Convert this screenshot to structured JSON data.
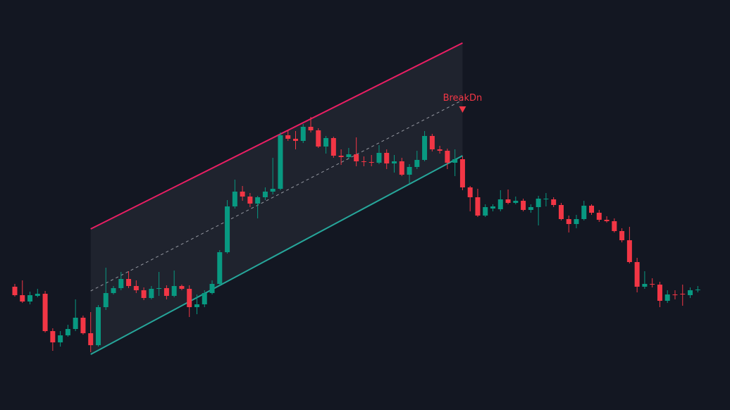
{
  "chart_data": {
    "type": "candlestick",
    "open": [
      175,
      163,
      154,
      162,
      165,
      112,
      96,
      106,
      115,
      131,
      109,
      92,
      146,
      166,
      173,
      186,
      176,
      170,
      159,
      172,
      173,
      162,
      176,
      172,
      146,
      150,
      166,
      179,
      224,
      289,
      310,
      303,
      293,
      302,
      310,
      314,
      390,
      385,
      382,
      402,
      397,
      374,
      386,
      361,
      359,
      363,
      353,
      352,
      351,
      365,
      350,
      353,
      334,
      345,
      355,
      389,
      370,
      368,
      351,
      356,
      316,
      302,
      276,
      286,
      285,
      299,
      294,
      297,
      284,
      288,
      299,
      299,
      291,
      271,
      264,
      271,
      290,
      280,
      270,
      268,
      254,
      241,
      210,
      175,
      179,
      178,
      155,
      164,
      165,
      163,
      170
    ],
    "high": [
      179,
      184,
      168,
      172,
      169,
      116,
      112,
      121,
      157,
      134,
      139,
      149,
      202,
      176,
      196,
      197,
      184,
      174,
      176,
      196,
      177,
      198,
      178,
      177,
      164,
      170,
      184,
      227,
      298,
      327,
      318,
      308,
      304,
      316,
      358,
      394,
      397,
      396,
      406,
      416,
      400,
      389,
      388,
      370,
      372,
      387,
      360,
      362,
      376,
      370,
      362,
      358,
      349,
      368,
      396,
      392,
      375,
      371,
      370,
      360,
      318,
      314,
      292,
      292,
      312,
      313,
      303,
      300,
      292,
      304,
      308,
      302,
      294,
      276,
      277,
      297,
      292,
      284,
      275,
      272,
      258,
      260,
      216,
      197,
      187,
      182,
      170,
      170,
      178,
      174,
      176
    ],
    "low": [
      161,
      152,
      150,
      160,
      110,
      84,
      90,
      104,
      112,
      107,
      82,
      90,
      142,
      164,
      170,
      173,
      166,
      156,
      157,
      162,
      157,
      160,
      170,
      132,
      136,
      146,
      164,
      177,
      222,
      286,
      297,
      288,
      272,
      298,
      306,
      312,
      382,
      370,
      379,
      394,
      372,
      364,
      358,
      348,
      356,
      346,
      346,
      346,
      349,
      342,
      337,
      332,
      322,
      342,
      353,
      367,
      364,
      342,
      332,
      312,
      282,
      274,
      274,
      282,
      282,
      292,
      292,
      282,
      280,
      262,
      289,
      288,
      269,
      252,
      258,
      269,
      277,
      267,
      266,
      252,
      238,
      208,
      167,
      172,
      174,
      146,
      152,
      157,
      148,
      159,
      167
    ],
    "close": [
      163,
      154,
      163,
      165,
      112,
      96,
      106,
      115,
      131,
      109,
      92,
      146,
      166,
      173,
      186,
      176,
      170,
      159,
      172,
      173,
      162,
      176,
      172,
      146,
      150,
      166,
      179,
      224,
      289,
      310,
      303,
      293,
      302,
      310,
      314,
      390,
      385,
      382,
      402,
      397,
      374,
      386,
      361,
      359,
      363,
      353,
      352,
      351,
      365,
      350,
      353,
      334,
      345,
      355,
      389,
      370,
      368,
      351,
      356,
      316,
      302,
      276,
      288,
      289,
      299,
      294,
      297,
      284,
      288,
      300,
      300,
      291,
      271,
      264,
      271,
      290,
      280,
      270,
      268,
      254,
      241,
      210,
      175,
      179,
      178,
      155,
      164,
      163,
      164,
      170,
      171
    ],
    "up_color": "#089981",
    "down_color": "#f23645",
    "ylim": [
      0,
      582
    ],
    "channel": {
      "x": [
        10,
        59
      ],
      "upper": [
        257,
        521
      ],
      "middle": [
        169,
        440
      ],
      "lower": [
        79,
        361
      ],
      "upper_color": "#e91e63",
      "lower_color": "#26a69a",
      "middle_color": "#9598a1"
    },
    "annotation": {
      "text": "BreakDn",
      "x": 59,
      "value": 426,
      "color": "#f23645"
    }
  }
}
